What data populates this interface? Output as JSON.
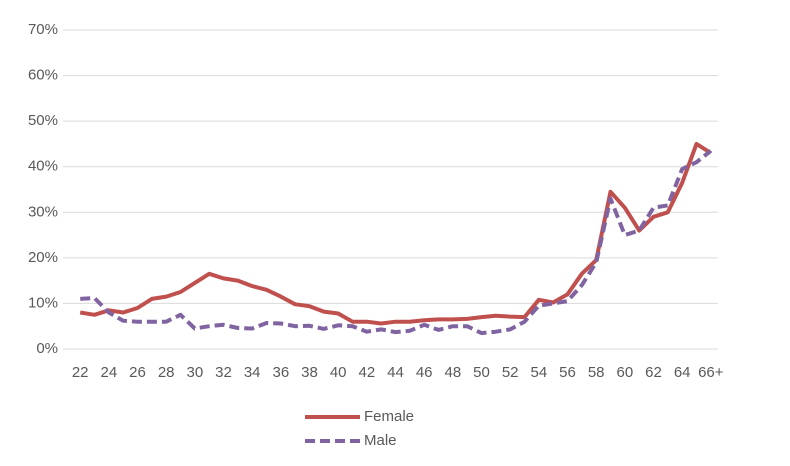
{
  "chart_data": {
    "type": "line",
    "categories": [
      "22",
      null,
      "24",
      null,
      "26",
      null,
      "28",
      null,
      "30",
      null,
      "32",
      null,
      "34",
      null,
      "36",
      null,
      "38",
      null,
      "40",
      null,
      "42",
      null,
      "44",
      null,
      "46",
      null,
      "48",
      null,
      "50",
      null,
      "52",
      null,
      "54",
      null,
      "56",
      null,
      "58",
      null,
      "60",
      null,
      "62",
      null,
      "64",
      null,
      "66+"
    ],
    "series": [
      {
        "name": "Female",
        "color": "#c0504d",
        "dashed": false,
        "values": [
          8,
          7.5,
          8.5,
          8,
          9,
          11,
          11.5,
          12.5,
          14.5,
          16.5,
          15.5,
          15,
          13.8,
          13,
          11.5,
          9.8,
          9.4,
          8.2,
          7.8,
          6,
          6,
          5.6,
          6,
          6,
          6.3,
          6.5,
          6.5,
          6.6,
          7,
          7.3,
          7.1,
          7,
          10.8,
          10.2,
          12,
          16.5,
          19.5,
          34.5,
          31,
          26,
          29,
          30,
          36.5,
          45,
          43
        ]
      },
      {
        "name": "Male",
        "color": "#8064a2",
        "dashed": true,
        "values": [
          11,
          11.2,
          8,
          6.2,
          6,
          6,
          6,
          7.5,
          4.5,
          5,
          5.3,
          4.6,
          4.5,
          5.7,
          5.6,
          5,
          5.1,
          4.4,
          5.2,
          5,
          3.8,
          4.3,
          3.7,
          4,
          5.3,
          4.2,
          5,
          5,
          3.5,
          3.8,
          4.3,
          6,
          9.5,
          10,
          10.5,
          14,
          19,
          33,
          25,
          26,
          31,
          31.5,
          39.5,
          41,
          43.5
        ]
      }
    ],
    "ylim": [
      0,
      70
    ],
    "yticks": [
      {
        "value": 0,
        "label": "0%"
      },
      {
        "value": 10,
        "label": "10%"
      },
      {
        "value": 20,
        "label": "20%"
      },
      {
        "value": 30,
        "label": "30%"
      },
      {
        "value": 40,
        "label": "40%"
      },
      {
        "value": 50,
        "label": "50%"
      },
      {
        "value": 60,
        "label": "60%"
      },
      {
        "value": 70,
        "label": "70%"
      }
    ],
    "grid": true,
    "legend": "bottom"
  }
}
